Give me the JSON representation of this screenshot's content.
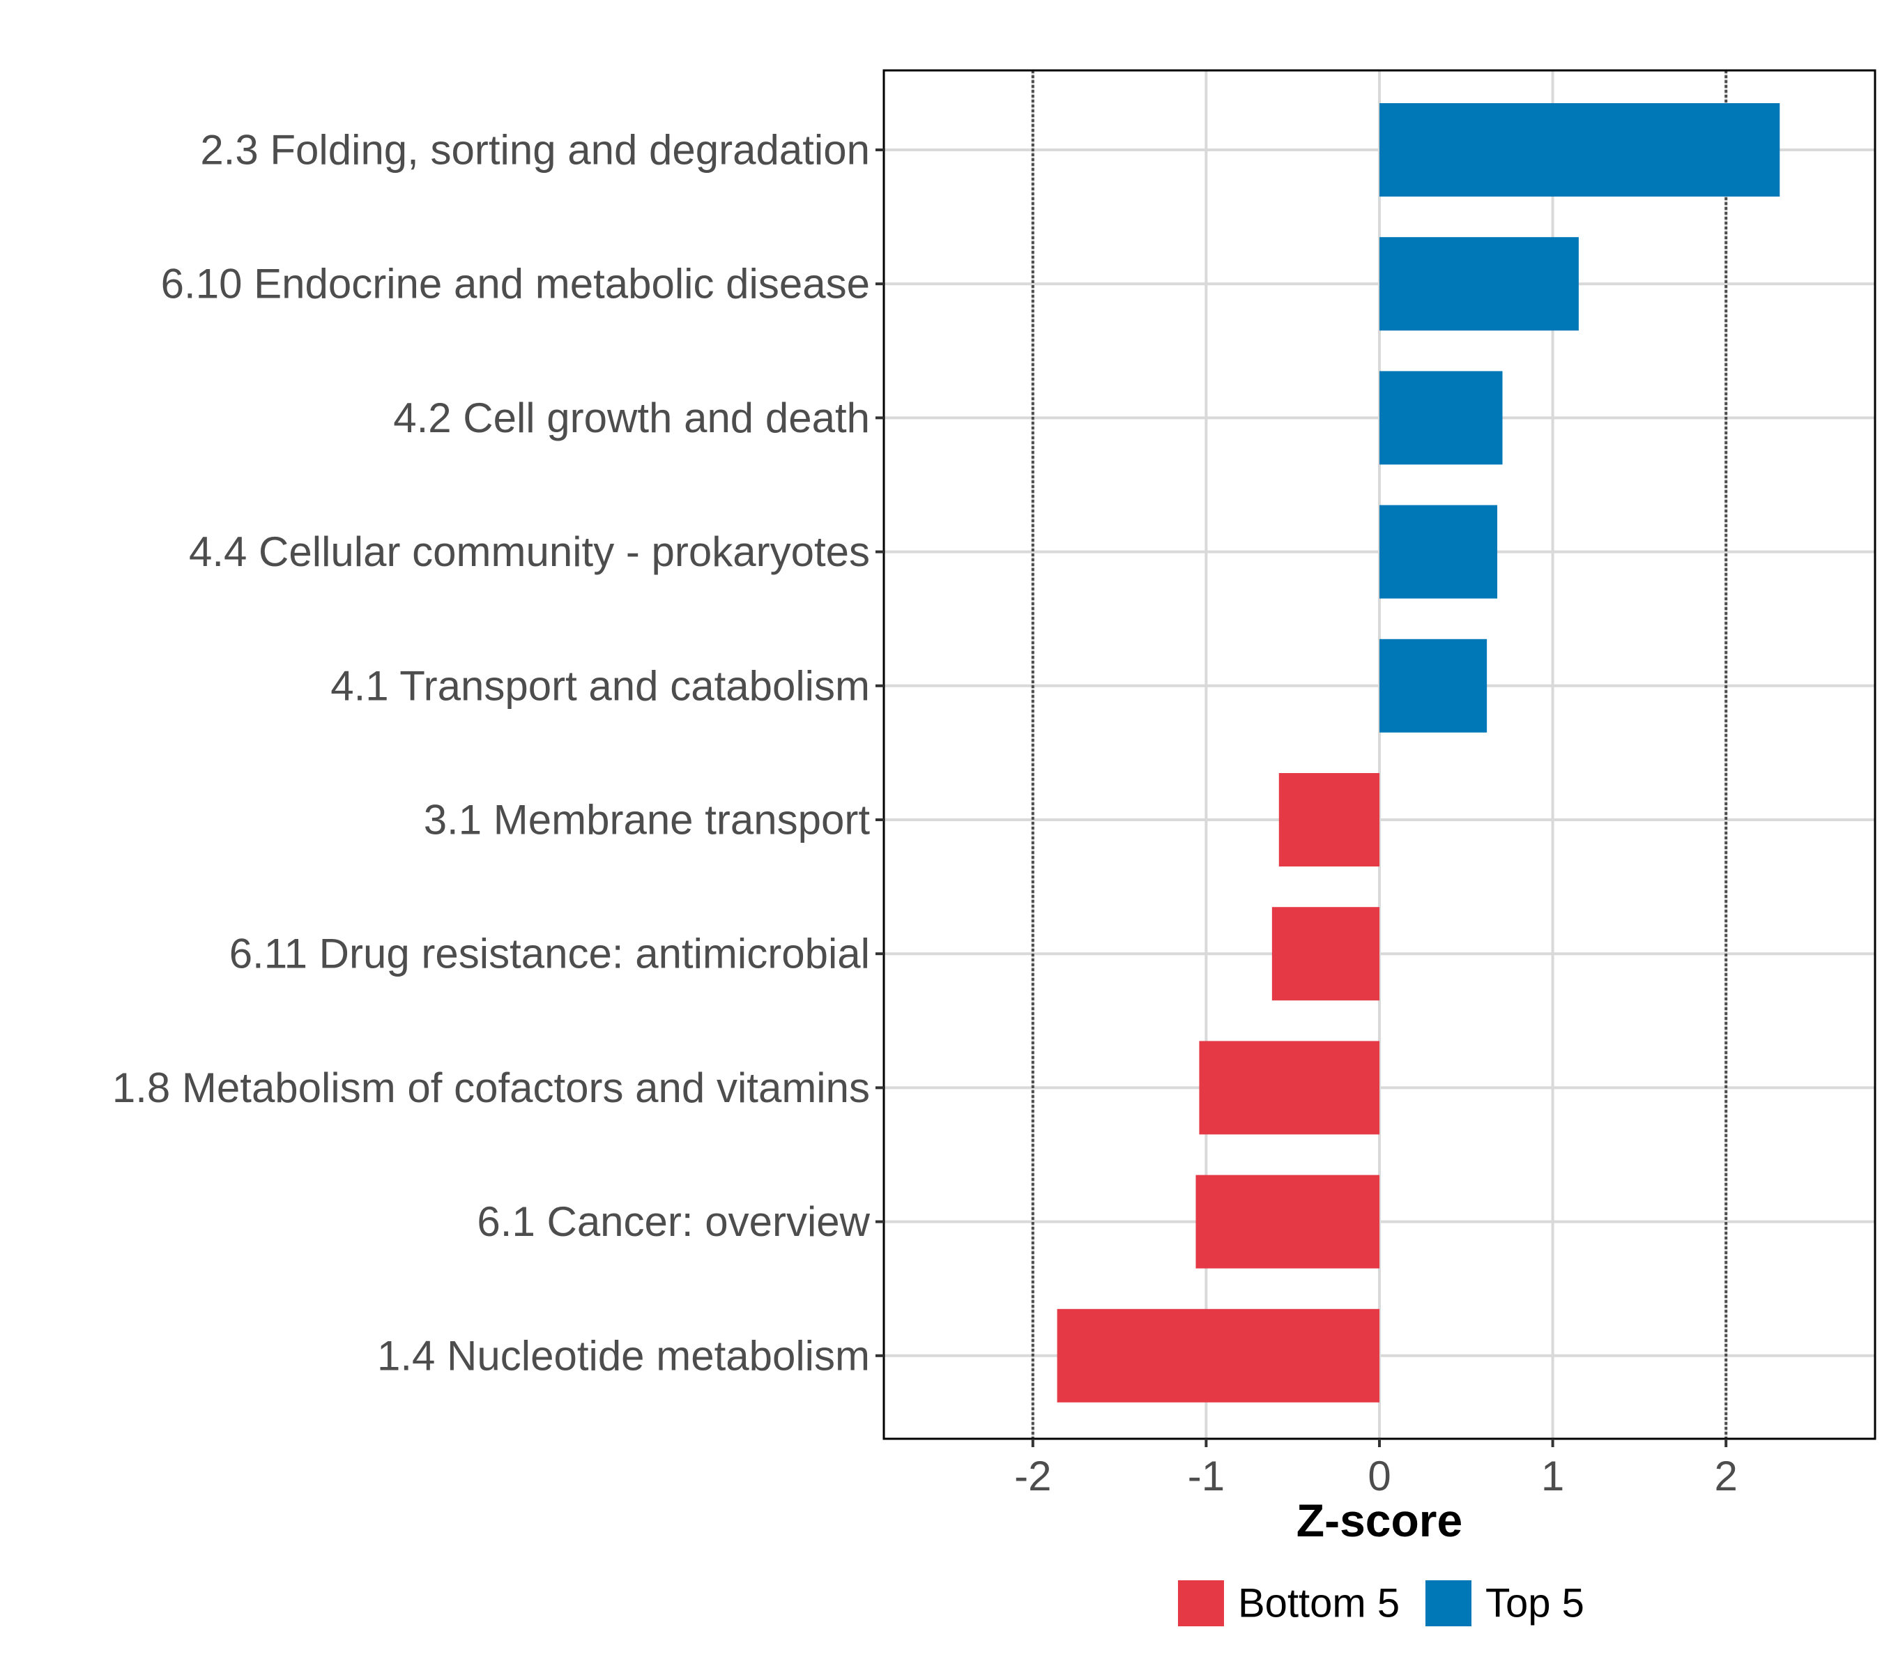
{
  "chart_data": {
    "type": "bar",
    "orientation": "horizontal",
    "categories": [
      "2.3 Folding, sorting and degradation",
      "6.10 Endocrine and metabolic disease",
      "4.2 Cell growth and death",
      "4.4 Cellular community - prokaryotes",
      "4.1 Transport and catabolism",
      "3.1 Membrane transport",
      "6.11 Drug resistance: antimicrobial",
      "1.8 Metabolism of cofactors and vitamins",
      "6.1 Cancer: overview",
      "1.4 Nucleotide metabolism"
    ],
    "values": [
      2.31,
      1.15,
      0.71,
      0.68,
      0.62,
      -0.58,
      -0.62,
      -1.04,
      -1.06,
      -1.86
    ],
    "groups": [
      "Top 5",
      "Top 5",
      "Top 5",
      "Top 5",
      "Top 5",
      "Bottom 5",
      "Bottom 5",
      "Bottom 5",
      "Bottom 5",
      "Bottom 5"
    ],
    "xlabel": "Z-score",
    "ylabel": "",
    "xlim": [
      -2.86,
      2.86
    ],
    "xticks": [
      -2,
      -1,
      0,
      1,
      2
    ],
    "xtick_labels": [
      "-2",
      "-1",
      "0",
      "1",
      "2"
    ],
    "reference_lines": [
      -2,
      2
    ],
    "grid": true,
    "legend_position": "bottom",
    "legend": [
      {
        "label": "Bottom 5",
        "color": "#e63946"
      },
      {
        "label": "Top 5",
        "color": "#0077b6"
      }
    ]
  }
}
